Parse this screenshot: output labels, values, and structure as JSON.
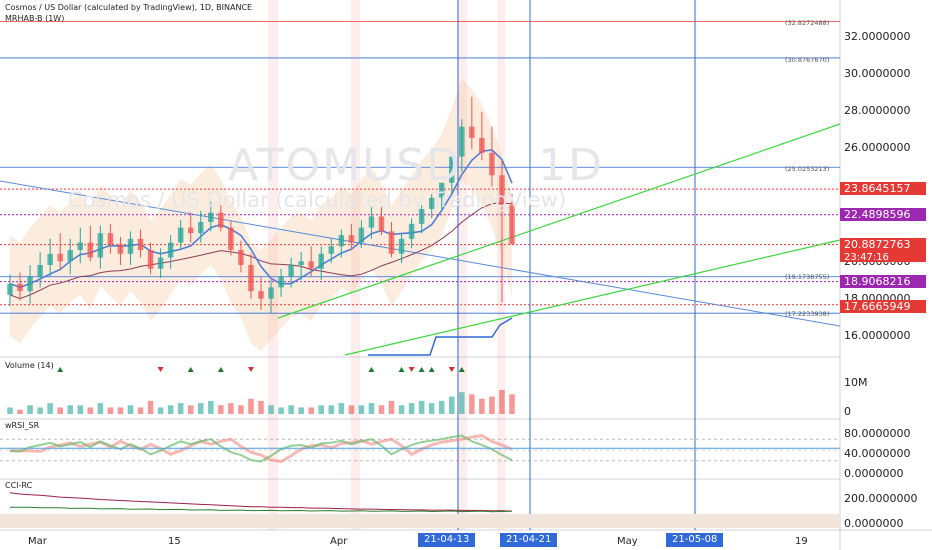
{
  "header": {
    "title": "Cosmos / US Dollar (calculated by TradingView), 1D, BINANCE",
    "indicator": "MRHAB-B (1W)"
  },
  "watermark": {
    "symbol": "ATOMUSD",
    "interval": "1D",
    "description": "Cosmos / US Dollar (calculated by TradingView)"
  },
  "price_axis": {
    "ticks": [
      "32.0000000",
      "30.0000000",
      "28.0000000",
      "26.0000000",
      "22.0000000",
      "20.0000000",
      "18.0000000",
      "16.0000000"
    ]
  },
  "price_badges": [
    {
      "label": "23.8645157",
      "color": "#e53935",
      "value": 23.86
    },
    {
      "label": "22.4898596",
      "color": "#9c27b0",
      "value": 22.49
    },
    {
      "label": "20.8872763",
      "color": "#e53935",
      "value": 20.89,
      "sub": "23:47:16"
    },
    {
      "label": "18.9068216",
      "color": "#9c27b0",
      "value": 18.91
    },
    {
      "label": "17.6665949",
      "color": "#e53935",
      "value": 17.67
    }
  ],
  "fib_labels": [
    {
      "label": "(32.8272488)",
      "value": 32.83
    },
    {
      "label": "(30.8767670)",
      "value": 30.88
    },
    {
      "label": "(25.0253213)",
      "value": 25.03
    },
    {
      "label": "(19.1738755)",
      "value": 19.17
    },
    {
      "label": "(17.2233938)",
      "value": 17.22
    }
  ],
  "panes": {
    "volume": {
      "title": "Volume (14)",
      "ticks": [
        "10M",
        "0"
      ]
    },
    "wrsi": {
      "title": "wRSI_SR",
      "ticks": [
        "80.0000000",
        "40.0000000",
        "0.0000000"
      ]
    },
    "cci": {
      "title": "CCI-RC",
      "ticks": [
        "200.0000000",
        "0.0000000"
      ]
    }
  },
  "x_axis": {
    "labels": [
      "Mar",
      "15",
      "Apr",
      "May",
      "19"
    ],
    "badges": [
      "21-04-13",
      "21-04-21",
      "21-05-08"
    ]
  },
  "colors": {
    "up": "#26a69a",
    "down": "#ef5350",
    "fib_red": "#e53935",
    "fib_blue": "#2f6ad8",
    "trend_green": "#3cd63c",
    "trend_blue": "#5b8bd6"
  },
  "chart_data": {
    "type": "candlestick",
    "x": [
      "2021-02-27",
      "2021-02-28",
      "2021-03-01",
      "2021-03-02",
      "2021-03-03",
      "2021-03-04",
      "2021-03-05",
      "2021-03-06",
      "2021-03-07",
      "2021-03-08",
      "2021-03-09",
      "2021-03-10",
      "2021-03-11",
      "2021-03-12",
      "2021-03-13",
      "2021-03-14",
      "2021-03-15",
      "2021-03-16",
      "2021-03-17",
      "2021-03-18",
      "2021-03-19",
      "2021-03-20",
      "2021-03-21",
      "2021-03-22",
      "2021-03-23",
      "2021-03-24",
      "2021-03-25",
      "2021-03-26",
      "2021-03-27",
      "2021-03-28",
      "2021-03-29",
      "2021-03-30",
      "2021-03-31",
      "2021-04-01",
      "2021-04-02",
      "2021-04-03",
      "2021-04-04",
      "2021-04-05",
      "2021-04-06",
      "2021-04-07",
      "2021-04-08",
      "2021-04-09",
      "2021-04-10",
      "2021-04-11",
      "2021-04-12",
      "2021-04-13",
      "2021-04-14",
      "2021-04-15",
      "2021-04-16",
      "2021-04-17",
      "2021-04-18"
    ],
    "open": [
      18.2,
      18.8,
      18.4,
      19.2,
      19.8,
      20.4,
      20.0,
      20.6,
      21.0,
      20.2,
      21.5,
      20.9,
      20.4,
      21.2,
      20.6,
      19.6,
      20.2,
      21.0,
      21.8,
      21.5,
      22.1,
      22.6,
      21.8,
      20.6,
      19.8,
      18.4,
      18.0,
      18.6,
      19.2,
      19.8,
      20.0,
      19.6,
      20.4,
      20.8,
      21.4,
      21.0,
      21.8,
      22.4,
      21.6,
      20.4,
      21.2,
      22.0,
      22.8,
      23.4,
      24.2,
      25.6,
      27.2,
      26.6,
      25.8,
      24.6,
      23.0
    ],
    "high": [
      19.3,
      19.4,
      19.8,
      20.5,
      21.2,
      21.5,
      21.2,
      21.8,
      21.9,
      21.9,
      22.0,
      21.3,
      21.6,
      21.7,
      21.0,
      20.7,
      21.4,
      22.2,
      22.6,
      22.7,
      23.2,
      23.0,
      22.2,
      21.1,
      20.4,
      19.2,
      19.0,
      19.6,
      20.2,
      20.5,
      20.8,
      20.8,
      21.2,
      21.7,
      22.0,
      22.2,
      22.9,
      22.9,
      22.1,
      21.5,
      22.3,
      23.0,
      23.6,
      24.2,
      25.8,
      27.6,
      28.8,
      28.0,
      27.2,
      25.4,
      23.6
    ],
    "low": [
      17.6,
      17.9,
      17.7,
      18.6,
      19.2,
      19.5,
      19.3,
      19.9,
      20.0,
      19.6,
      20.4,
      19.8,
      19.8,
      20.2,
      19.3,
      19.1,
      19.6,
      20.6,
      21.0,
      21.0,
      21.6,
      21.6,
      20.3,
      19.4,
      18.0,
      17.4,
      17.2,
      18.1,
      18.6,
      19.0,
      19.2,
      19.0,
      19.9,
      20.2,
      20.6,
      20.7,
      21.2,
      21.4,
      20.2,
      19.9,
      20.7,
      21.5,
      22.3,
      22.8,
      23.6,
      24.8,
      26.0,
      25.4,
      24.0,
      17.8,
      21.0
    ],
    "close": [
      18.8,
      18.4,
      19.2,
      19.8,
      20.4,
      20.0,
      20.6,
      21.0,
      20.2,
      21.5,
      20.9,
      20.4,
      21.2,
      20.6,
      19.6,
      20.2,
      21.0,
      21.8,
      21.5,
      22.1,
      22.6,
      21.8,
      20.6,
      19.8,
      18.4,
      18.0,
      18.6,
      19.2,
      19.8,
      20.0,
      19.6,
      20.4,
      20.8,
      21.4,
      21.0,
      21.8,
      22.4,
      21.6,
      20.4,
      21.2,
      22.0,
      22.8,
      23.4,
      24.2,
      25.6,
      27.2,
      26.6,
      25.8,
      24.6,
      23.0,
      20.9
    ],
    "ylim": [
      15.3,
      33.3
    ],
    "volume": [
      3,
      2,
      4,
      3,
      5,
      3,
      4,
      4,
      3,
      5,
      3,
      3,
      4,
      3,
      6,
      3,
      4,
      5,
      4,
      5,
      6,
      4,
      5,
      4,
      7,
      6,
      4,
      3,
      4,
      3,
      3,
      4,
      4,
      5,
      4,
      4,
      5,
      4,
      6,
      4,
      5,
      6,
      5,
      6,
      8,
      10,
      9,
      7,
      8,
      11,
      9
    ],
    "rsi": [
      48,
      46,
      58,
      64,
      70,
      60,
      66,
      72,
      58,
      74,
      62,
      52,
      66,
      54,
      38,
      48,
      62,
      74,
      66,
      74,
      80,
      60,
      44,
      36,
      22,
      18,
      34,
      52,
      62,
      64,
      56,
      68,
      70,
      76,
      66,
      74,
      80,
      62,
      38,
      52,
      64,
      72,
      76,
      80,
      86,
      90,
      74,
      64,
      52,
      36,
      22
    ],
    "cci": [
      80,
      75,
      72,
      70,
      66,
      62,
      60,
      58,
      55,
      52,
      50,
      48,
      46,
      44,
      42,
      40,
      38,
      36,
      34,
      32,
      30,
      28,
      26,
      24,
      22,
      22,
      20,
      20,
      18,
      18,
      16,
      16,
      15,
      14,
      13,
      12,
      12,
      11,
      10,
      10,
      9,
      9,
      8,
      8,
      8,
      7,
      7,
      6,
      5,
      5,
      4
    ]
  }
}
